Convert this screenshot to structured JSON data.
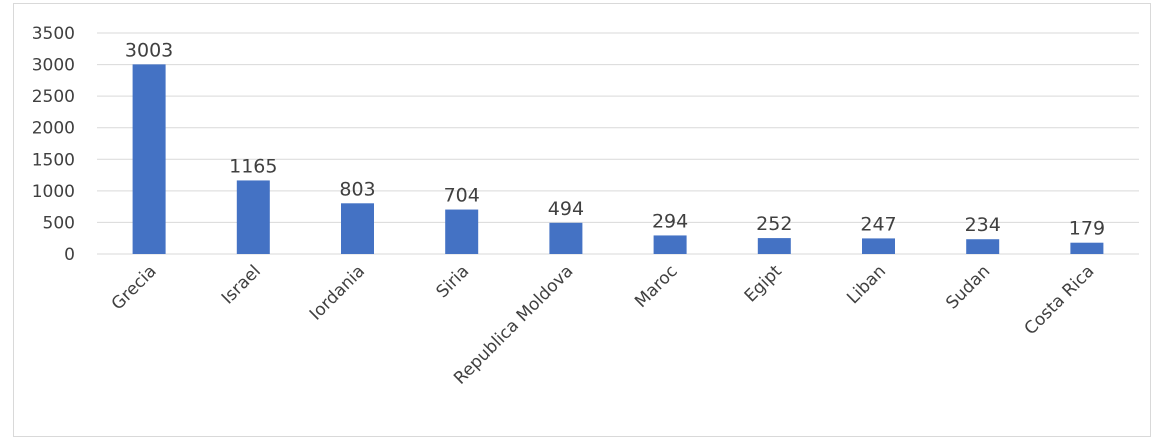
{
  "chart_data": {
    "type": "bar",
    "categories": [
      "Grecia",
      "Israel",
      "Iordania",
      "Siria",
      "Republica Moldova",
      "Maroc",
      "Egipt",
      "Liban",
      "Sudan",
      "Costa Rica"
    ],
    "values": [
      3003,
      1165,
      803,
      704,
      494,
      294,
      252,
      247,
      234,
      179
    ],
    "ylim": [
      0,
      3500
    ],
    "yticks": [
      0,
      500,
      1000,
      1500,
      2000,
      2500,
      3000,
      3500
    ],
    "title": "",
    "xlabel": "",
    "ylabel": "",
    "grid": true,
    "legend": "none",
    "bar_color": "#4472c4",
    "grid_color": "#d9d9d9",
    "text_color": "#404040"
  }
}
